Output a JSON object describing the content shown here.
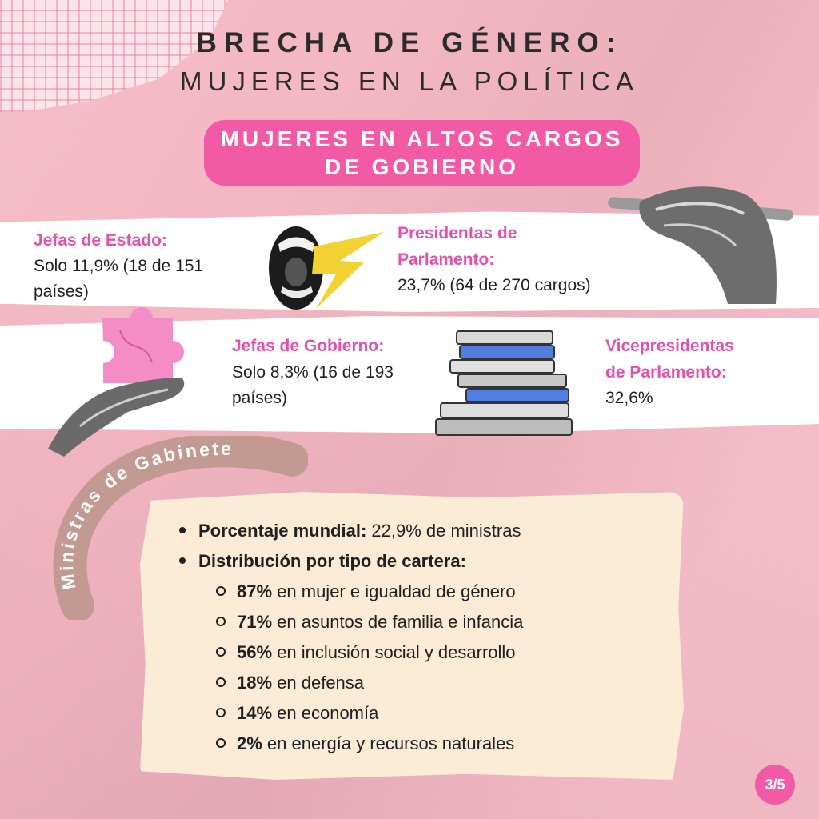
{
  "title": {
    "line1": "BRECHA DE GÉNERO:",
    "line2": "MUJERES EN LA POLÍTICA"
  },
  "section_header": {
    "line1": "MUJERES EN ALTOS CARGOS",
    "line2": "DE GOBIERNO"
  },
  "stats": {
    "jefas_estado": {
      "label": "Jefas de Estado:",
      "value_line1": "Solo 11,9% (18 de 151",
      "value_line2": "países)"
    },
    "presidentas_parlamento": {
      "label_line1": "Presidentas de",
      "label_line2": "Parlamento:",
      "value": "23,7% (64 de 270 cargos)"
    },
    "jefas_gobierno": {
      "label": "Jefas de Gobierno:",
      "value_line1": "Solo 8,3% (16 de 193",
      "value_line2": "países)"
    },
    "vicepresidentas_parlamento": {
      "label_line1": "Vicepresidentas",
      "label_line2": "de Parlamento:",
      "value": "32,6%"
    }
  },
  "ribbon_label": "Ministras de Gabinete",
  "ministras": {
    "item1": {
      "bold": "Porcentaje mundial:",
      "text": " 22,9% de ministras"
    },
    "item2": {
      "bold": "Distribución por tipo de cartera:"
    },
    "sub": [
      {
        "pct": "87%",
        "text": " en mujer e igualdad de género"
      },
      {
        "pct": "71%",
        "text": " en asuntos de familia e infancia"
      },
      {
        "pct": "56%",
        "text": " en inclusión social y desarrollo"
      },
      {
        "pct": "18%",
        "text": " en defensa"
      },
      {
        "pct": "14%",
        "text": " en economía"
      },
      {
        "pct": "2%",
        "text": " en energía y recursos naturales"
      }
    ]
  },
  "page_indicator": "3/5",
  "colors": {
    "background": "#f3b3c0",
    "accent": "#f25aa6",
    "label_pink": "#e64fae",
    "card": "#fcecd7",
    "ribbon": "#c29a92"
  },
  "icons": [
    "shouting-mouth-icon",
    "lightning-icon",
    "hand-with-pencil-icon",
    "hand-with-puzzle-icon",
    "book-stack-icon"
  ]
}
